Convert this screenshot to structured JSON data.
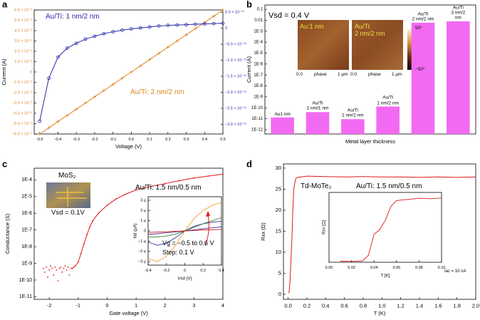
{
  "chart_data": [
    {
      "panel": "a",
      "type": "line",
      "xlabel": "Voltage (V)",
      "ylabel": "Current (A)",
      "xlim": [
        -0.53,
        0.5
      ],
      "xticks": [
        -0.5,
        -0.4,
        -0.3,
        -0.2,
        -0.1,
        {
          "value": 0,
          "label": "0.0"
        },
        0.1,
        0.2,
        0.3,
        0.4,
        0.5
      ],
      "ylim": [
        -0.006,
        0.006
      ],
      "yticks": [
        {
          "value": 0.006,
          "label": "6.0 × 10⁻³"
        },
        {
          "value": 0.005,
          "label": "5.0 × 10⁻³"
        },
        {
          "value": 0.004,
          "label": "4.0 × 10⁻³"
        },
        {
          "value": 0.003,
          "label": "3.0 × 10⁻³"
        },
        {
          "value": 0.002,
          "label": "2.0 × 10⁻³"
        },
        {
          "value": 0.001,
          "label": "1.0 × 10⁻³"
        },
        0,
        {
          "value": -0.001,
          "label": "−1.0 × 10⁻³"
        },
        {
          "value": -0.002,
          "label": "−2.0 × 10⁻³"
        },
        {
          "value": -0.003,
          "label": "−3.0 × 10⁻³"
        },
        {
          "value": -0.004,
          "label": "−4.0 × 10⁻³"
        },
        {
          "value": -0.005,
          "label": "−5.0 × 10⁻³"
        },
        {
          "value": -0.006,
          "label": "−6.0 × 10⁻³"
        }
      ],
      "y2lim": [
        -3.3e-12,
        5.7e-13
      ],
      "y2ticks": [
        {
          "value": 5e-13,
          "label": "5.0 × 10⁻¹³"
        },
        0,
        {
          "value": -5e-13,
          "label": "−5.0 × 10⁻¹³"
        },
        {
          "value": -1e-12,
          "label": "−1.0 × 10⁻¹²"
        },
        {
          "value": -1.5e-12,
          "label": "−1.5 × 10⁻¹²"
        },
        {
          "value": -2e-12,
          "label": "−2.0 × 10⁻¹²"
        },
        {
          "value": -2.5e-12,
          "label": "−2.5 × 10⁻¹²"
        },
        {
          "value": -3e-12,
          "label": "−3.0 × 10⁻¹²"
        }
      ],
      "x": [
        -0.5,
        -0.45,
        -0.4,
        -0.35,
        -0.3,
        -0.25,
        -0.2,
        -0.15,
        -0.1,
        -0.05,
        0,
        0.05,
        0.1,
        0.15,
        0.2,
        0.25,
        0.3,
        0.35,
        0.4,
        0.45,
        0.5
      ],
      "series": [
        {
          "name": "Au/Ti: 2 nm/2 nm",
          "color": "#e0861f",
          "marker": "plus",
          "values": [
            -0.006,
            -0.0054,
            -0.0048,
            -0.0042,
            -0.0036,
            -0.003,
            -0.0024,
            -0.0018,
            -0.0012,
            -0.0006,
            0,
            0.0006,
            0.0012,
            0.0018,
            0.0024,
            0.003,
            0.0036,
            0.0042,
            0.0048,
            0.0054,
            0.006
          ]
        },
        {
          "name": "Au/Ti: 1 nm/2 nm",
          "color": "#2b2ba8",
          "marker": "circle",
          "axis": "y2",
          "values": [
            -2.9e-12,
            -1.56e-12,
            -9e-13,
            -6.2e-13,
            -4.7e-13,
            -3.4e-13,
            -2.5e-13,
            -1.7e-13,
            -1.1e-13,
            -6e-14,
            -2e-14,
            1e-14,
            4e-14,
            7e-14,
            9e-14,
            1e-13,
            1.1e-13,
            1.25e-13,
            1.35e-13,
            1.45e-13,
            1.55e-13
          ]
        }
      ]
    },
    {
      "panel": "b",
      "type": "bar",
      "ylog": true,
      "xlabel": "Metal layer thickness",
      "ylabel": "Current (A)",
      "ylim": [
        4e-13,
        0.25
      ],
      "yticks": [
        {
          "value": 1e-12,
          "label": "1E-12"
        },
        {
          "value": 1e-11,
          "label": "1E-11"
        },
        {
          "value": 1e-10,
          "label": "1E-10"
        },
        {
          "value": 1e-09,
          "label": "1E-9"
        },
        {
          "value": 1e-08,
          "label": "1E-8"
        },
        {
          "value": 1e-07,
          "label": "1E-7"
        },
        {
          "value": 1e-06,
          "label": "1E-6"
        },
        {
          "value": 1e-05,
          "label": "1E-5"
        },
        {
          "value": 0.0001,
          "label": "1E-4"
        },
        {
          "value": 0.001,
          "label": "1E-3"
        },
        0.01,
        0.1
      ],
      "categories": [
        "Au1 nm",
        "Au/Ti\n1 nm/1 nm",
        "Au/Ti\n1 nm/2 nm",
        "Au/Ti\n1 nm/2 nm",
        "Au/Ti\n2 nm/2 nm",
        "Au/Ti\n3 nm/2 nm"
      ],
      "values": [
        1.3e-11,
        4e-11,
        9e-12,
        1.3e-10,
        0.006,
        0.008
      ],
      "color": "#f26af2",
      "annotations": [
        "Vsd = 0.4 V",
        "Au:1 nm",
        "Au/Ti:\n2 nm/2 nm",
        "0.0",
        "phase",
        "1 µm",
        "0.0",
        "phase",
        "1 µm",
        "50°",
        "−50°"
      ]
    },
    {
      "panel": "c",
      "type": "line",
      "ylog": true,
      "xlabel": "Gate voltage (V)",
      "ylabel": "Conductance (S)",
      "xlim": [
        -2.52,
        4
      ],
      "xticks": [
        -2,
        -1,
        0,
        1,
        2,
        3,
        4
      ],
      "ylim": [
        7e-12,
        0.0005
      ],
      "yticks": [
        {
          "value": 1e-11,
          "label": "1E-11"
        },
        {
          "value": 1e-10,
          "label": "1E-10"
        },
        {
          "value": 1e-09,
          "label": "1E-9"
        },
        {
          "value": 1e-08,
          "label": "1E-8"
        },
        {
          "value": 1e-07,
          "label": "1E-7"
        },
        {
          "value": 1e-06,
          "label": "1E-6"
        },
        {
          "value": 1e-05,
          "label": "1E-5"
        },
        {
          "value": 0.0001,
          "label": "1E-4"
        }
      ],
      "series": [
        {
          "color": "#e01818",
          "marker": "dot",
          "line": false,
          "x": [
            -2.2,
            -2.15,
            -2.1,
            -2.05,
            -2.0,
            -1.95,
            -1.9,
            -1.85,
            -1.8,
            -1.75,
            -1.7,
            -1.65,
            -1.6,
            -1.55,
            -1.5,
            -1.45,
            -1.4,
            -1.35,
            -1.3,
            -1.25
          ],
          "values": [
            5e-10,
            3e-10,
            6e-10,
            1.5e-10,
            4e-10,
            7e-10,
            5e-10,
            2e-10,
            6e-10,
            4e-10,
            9e-11,
            5e-10,
            6e-10,
            3e-10,
            5e-10,
            7e-10,
            4e-10,
            6e-10,
            2e-10,
            5e-10
          ]
        },
        {
          "color": "#e01818",
          "marker": "dot",
          "x": [
            -1.2,
            -1.1,
            -1,
            -0.9,
            -0.8,
            -0.7,
            -0.6,
            -0.5,
            -0.3,
            0,
            0.3,
            0.6,
            1,
            1.5,
            2,
            2.5,
            3,
            3.5,
            4
          ],
          "values": [
            5e-10,
            7e-10,
            1.2e-09,
            4e-09,
            1.5e-08,
            5e-08,
            1.5e-07,
            3.5e-07,
            1e-06,
            3e-06,
            7e-06,
            1.3e-05,
            2.5e-05,
            4e-05,
            6e-05,
            9e-05,
            0.00013,
            0.00017,
            0.00022
          ]
        }
      ],
      "annotations": [
        "Au/Ti: 1.5 nm/0.5 nm",
        "MoS₂",
        "Vsd = 0.1V"
      ]
    },
    {
      "type": "line",
      "xlabel": "Vsd (V)",
      "ylabel": "Isd (µA)",
      "xlim": [
        -0.4,
        0.4
      ],
      "xticks": [
        -0.4,
        -0.2,
        0,
        0.2,
        0.4
      ],
      "ylim": [
        -3.35e-06,
        3.35e-06
      ],
      "yticks": [
        {
          "value": 3e-06,
          "label": "3 µ"
        },
        {
          "value": 2e-06,
          "label": "2 µ"
        },
        {
          "value": 1e-06,
          "label": "1 µ"
        },
        0,
        {
          "value": -1e-06,
          "label": "−1 µ"
        },
        {
          "value": -2e-06,
          "label": "−2 µ"
        },
        {
          "value": -3e-06,
          "label": "−3 µ"
        }
      ],
      "x": [
        -0.4,
        -0.3,
        -0.2,
        -0.1,
        0,
        0.1,
        0.2,
        0.3,
        0.4
      ],
      "series": [
        {
          "color": "#f0a030",
          "values": [
            -2.7e-06,
            -3e-06,
            -2.5e-06,
            -1.4e-06,
            0,
            1.2e-06,
            2e-06,
            2.5e-06,
            2.8e-06
          ]
        },
        {
          "color": "#3030a0",
          "values": [
            -1.1e-06,
            -1.4e-06,
            -1.2e-06,
            -6.5e-07,
            0,
            4.5e-07,
            7e-07,
            8.5e-07,
            9.5e-07
          ]
        },
        {
          "color": "#308030",
          "values": [
            -6e-07,
            -6e-07,
            -5e-07,
            -3e-07,
            0,
            3.5e-07,
            7e-07,
            1e-06,
            1.3e-06
          ]
        },
        {
          "color": "#602080",
          "values": [
            -3.5e-07,
            -2.7e-07,
            -1.8e-07,
            -9e-08,
            0,
            1e-07,
            2e-07,
            3e-07,
            4e-07
          ]
        },
        {
          "color": "#c02020",
          "values": [
            -1.5e-07,
            -1.1e-07,
            -8e-08,
            -4e-08,
            0,
            4e-08,
            8e-08,
            1.1e-07,
            1.5e-07
          ]
        }
      ],
      "annotations": [
        "Vg = −0.5 to 0.6 V",
        "Step: 0.1 V"
      ]
    },
    {
      "panel": "d",
      "type": "line",
      "xlabel": "T (K)",
      "ylabel": "Rxx (Ω)",
      "xlim": [
        -0.05,
        2
      ],
      "xticks": [
        {
          "value": 0,
          "label": "0.0"
        },
        0.2,
        0.4,
        0.6,
        0.8,
        {
          "value": 1,
          "label": "1.0"
        },
        1.2,
        1.4,
        1.6,
        1.8,
        {
          "value": 2,
          "label": "2.0"
        }
      ],
      "ylim": [
        -1.2,
        31
      ],
      "yticks": [
        0,
        5,
        10,
        15,
        20,
        25,
        30
      ],
      "x": [
        0.005,
        0.01,
        0.02,
        0.03,
        0.04,
        0.05,
        0.06,
        0.08,
        0.1,
        0.2,
        0.4,
        0.6,
        0.8,
        1.0,
        1.2,
        1.4,
        1.6,
        1.8,
        2.0
      ],
      "series": [
        {
          "color": "#e01818",
          "values": [
            0.3,
            0.5,
            3,
            8,
            13,
            20,
            25,
            27.5,
            27.8,
            28.1,
            28.0,
            27.9,
            28.0,
            27.9,
            27.9,
            27.8,
            27.9,
            27.8,
            27.9
          ]
        }
      ],
      "annotations": [
        "Td-MoTe₂",
        "Au/Ti: 1.5 nm/0.5 nm",
        "Iac = 10 nA"
      ]
    },
    {
      "type": "line",
      "xlabel": "T [K]",
      "ylabel": "Rxx [Ω]",
      "xlim": [
        0,
        0.1
      ],
      "xticks": [
        {
          "value": 0,
          "label": "0.00"
        },
        0.02,
        0.04,
        0.06,
        0.08,
        {
          "value": 0.1,
          "label": "0.10"
        }
      ],
      "ylim": [
        0,
        30
      ],
      "x": [
        0.01,
        0.02,
        0.03,
        0.035,
        0.04,
        0.045,
        0.05,
        0.055,
        0.06,
        0.07,
        0.08,
        0.09,
        0.1
      ],
      "series": [
        {
          "color": "#e01818",
          "values": [
            0.5,
            0.4,
            0.6,
            3,
            12,
            14,
            18,
            24,
            26.5,
            27,
            27.5,
            27.3,
            27.6
          ]
        }
      ]
    }
  ]
}
